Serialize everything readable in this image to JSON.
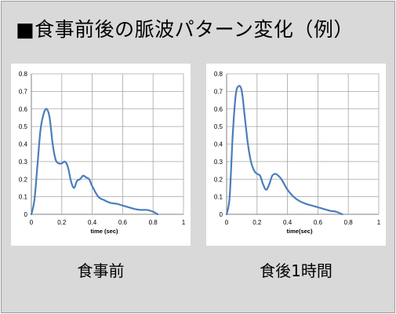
{
  "slide": {
    "title": "■食事前後の脈波パターン変化（例）"
  },
  "captions": [
    "食事前",
    "食後1時間"
  ],
  "chart_data": [
    {
      "type": "line",
      "title": "",
      "xlabel": "time (sec)",
      "ylabel": "",
      "xlim": [
        0,
        1
      ],
      "ylim": [
        0,
        0.8
      ],
      "xticks": [
        0,
        0.2,
        0.4,
        0.6,
        0.8,
        1
      ],
      "yticks": [
        0,
        0.1,
        0.2,
        0.3,
        0.4,
        0.5,
        0.6,
        0.7,
        0.8
      ],
      "grid": true,
      "legend": "none",
      "series_color": "#4a7ebb",
      "series": [
        {
          "x": [
            0,
            0.02,
            0.04,
            0.06,
            0.08,
            0.1,
            0.12,
            0.14,
            0.16,
            0.18,
            0.2,
            0.22,
            0.24,
            0.26,
            0.28,
            0.3,
            0.32,
            0.34,
            0.36,
            0.38,
            0.4,
            0.44,
            0.48,
            0.52,
            0.56,
            0.6,
            0.64,
            0.68,
            0.72,
            0.76,
            0.8,
            0.83
          ],
          "y": [
            0,
            0.08,
            0.28,
            0.48,
            0.57,
            0.6,
            0.55,
            0.4,
            0.31,
            0.29,
            0.29,
            0.3,
            0.27,
            0.19,
            0.15,
            0.19,
            0.2,
            0.22,
            0.21,
            0.2,
            0.16,
            0.1,
            0.08,
            0.065,
            0.06,
            0.05,
            0.04,
            0.03,
            0.025,
            0.025,
            0.015,
            0
          ]
        }
      ]
    },
    {
      "type": "line",
      "title": "",
      "xlabel": "time(sec)",
      "ylabel": "",
      "xlim": [
        0,
        1
      ],
      "ylim": [
        0,
        0.8
      ],
      "xticks": [
        0,
        0.2,
        0.4,
        0.6,
        0.8,
        1
      ],
      "yticks": [
        0,
        0.1,
        0.2,
        0.3,
        0.4,
        0.5,
        0.6,
        0.7,
        0.8
      ],
      "grid": true,
      "legend": "none",
      "series_color": "#4a7ebb",
      "series": [
        {
          "x": [
            0,
            0.02,
            0.04,
            0.06,
            0.08,
            0.1,
            0.12,
            0.14,
            0.16,
            0.18,
            0.2,
            0.22,
            0.24,
            0.26,
            0.28,
            0.3,
            0.32,
            0.34,
            0.36,
            0.38,
            0.4,
            0.44,
            0.48,
            0.52,
            0.56,
            0.6,
            0.64,
            0.68,
            0.72,
            0.76
          ],
          "y": [
            0,
            0.1,
            0.45,
            0.68,
            0.73,
            0.7,
            0.55,
            0.4,
            0.3,
            0.25,
            0.23,
            0.22,
            0.17,
            0.14,
            0.17,
            0.22,
            0.23,
            0.22,
            0.2,
            0.17,
            0.14,
            0.1,
            0.075,
            0.06,
            0.05,
            0.04,
            0.03,
            0.02,
            0.015,
            0
          ]
        }
      ]
    }
  ]
}
